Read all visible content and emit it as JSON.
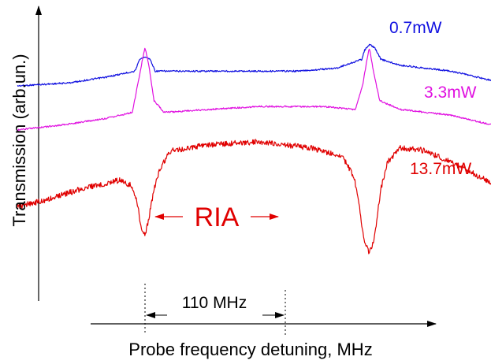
{
  "chart_data": {
    "type": "line",
    "xlabel": "Probe frequency detuning, MHz",
    "ylabel": "Transmission (arb.un.)",
    "x_range": [
      -140,
      315
    ],
    "series": [
      {
        "name": "0.7mW",
        "color": "#1010e0",
        "points": [
          [
            -100,
            0.27
          ],
          [
            -60,
            0.26
          ],
          [
            -30,
            0.24
          ],
          [
            -8,
            0.22
          ],
          [
            -4,
            0.18
          ],
          [
            0,
            0.17
          ],
          [
            4,
            0.18
          ],
          [
            8,
            0.22
          ],
          [
            40,
            0.22
          ],
          [
            80,
            0.22
          ],
          [
            120,
            0.22
          ],
          [
            150,
            0.21
          ],
          [
            170,
            0.18
          ],
          [
            172,
            0.15
          ],
          [
            176,
            0.13
          ],
          [
            180,
            0.14
          ],
          [
            185,
            0.18
          ],
          [
            200,
            0.2
          ],
          [
            240,
            0.22
          ],
          [
            280,
            0.26
          ],
          [
            300,
            0.28
          ]
        ]
      },
      {
        "name": "3.3mW",
        "color": "#e010e0",
        "points": [
          [
            -100,
            0.42
          ],
          [
            -60,
            0.4
          ],
          [
            -30,
            0.38
          ],
          [
            -10,
            0.36
          ],
          [
            -5,
            0.25
          ],
          [
            -2,
            0.18
          ],
          [
            0,
            0.14
          ],
          [
            3,
            0.2
          ],
          [
            7,
            0.32
          ],
          [
            15,
            0.36
          ],
          [
            50,
            0.35
          ],
          [
            90,
            0.34
          ],
          [
            140,
            0.34
          ],
          [
            165,
            0.35
          ],
          [
            171,
            0.26
          ],
          [
            174,
            0.18
          ],
          [
            176,
            0.14
          ],
          [
            179,
            0.22
          ],
          [
            184,
            0.32
          ],
          [
            200,
            0.35
          ],
          [
            240,
            0.37
          ],
          [
            280,
            0.41
          ],
          [
            310,
            0.44
          ]
        ]
      },
      {
        "name": "13.7mW",
        "color": "#e00000",
        "points": [
          [
            -100,
            0.68
          ],
          [
            -80,
            0.66
          ],
          [
            -50,
            0.62
          ],
          [
            -20,
            0.59
          ],
          [
            -10,
            0.61
          ],
          [
            -6,
            0.67
          ],
          [
            -3,
            0.75
          ],
          [
            0,
            0.78
          ],
          [
            3,
            0.72
          ],
          [
            7,
            0.62
          ],
          [
            12,
            0.55
          ],
          [
            20,
            0.49
          ],
          [
            50,
            0.47
          ],
          [
            90,
            0.46
          ],
          [
            130,
            0.48
          ],
          [
            155,
            0.51
          ],
          [
            164,
            0.58
          ],
          [
            168,
            0.68
          ],
          [
            172,
            0.8
          ],
          [
            176,
            0.84
          ],
          [
            180,
            0.78
          ],
          [
            185,
            0.62
          ],
          [
            190,
            0.53
          ],
          [
            200,
            0.48
          ],
          [
            220,
            0.49
          ],
          [
            250,
            0.55
          ],
          [
            280,
            0.62
          ],
          [
            310,
            0.67
          ]
        ]
      }
    ],
    "annotations": {
      "ria_label": "RIA",
      "spacing_label": "110 MHz"
    }
  }
}
